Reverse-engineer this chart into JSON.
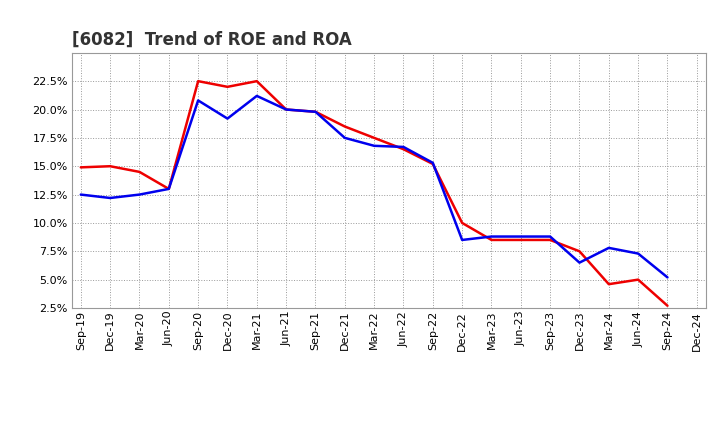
{
  "title": "[6082]  Trend of ROE and ROA",
  "x_labels": [
    "Sep-19",
    "Dec-19",
    "Mar-20",
    "Jun-20",
    "Sep-20",
    "Dec-20",
    "Mar-21",
    "Jun-21",
    "Sep-21",
    "Dec-21",
    "Mar-22",
    "Jun-22",
    "Sep-22",
    "Dec-22",
    "Mar-23",
    "Jun-23",
    "Sep-23",
    "Dec-23",
    "Mar-24",
    "Jun-24",
    "Sep-24",
    "Dec-24"
  ],
  "roe": [
    14.9,
    15.0,
    14.5,
    13.0,
    22.5,
    22.0,
    22.5,
    20.0,
    19.8,
    18.5,
    17.5,
    16.5,
    15.2,
    10.0,
    8.5,
    8.5,
    8.5,
    7.5,
    4.6,
    5.0,
    2.7,
    null
  ],
  "roa": [
    12.5,
    12.2,
    12.5,
    13.0,
    20.8,
    19.2,
    21.2,
    20.0,
    19.8,
    17.5,
    16.8,
    16.7,
    15.3,
    8.5,
    8.8,
    8.8,
    8.8,
    6.5,
    7.8,
    7.3,
    5.2,
    null
  ],
  "roe_color": "#ee0000",
  "roa_color": "#0000ee",
  "bg_color": "#ffffff",
  "plot_bg_color": "#ffffff",
  "grid_color": "#aaaaaa",
  "ylim": [
    2.5,
    25.0
  ],
  "yticks": [
    2.5,
    5.0,
    7.5,
    10.0,
    12.5,
    15.0,
    17.5,
    20.0,
    22.5
  ],
  "title_fontsize": 12,
  "legend_fontsize": 10,
  "tick_fontsize": 8,
  "linewidth": 1.8
}
